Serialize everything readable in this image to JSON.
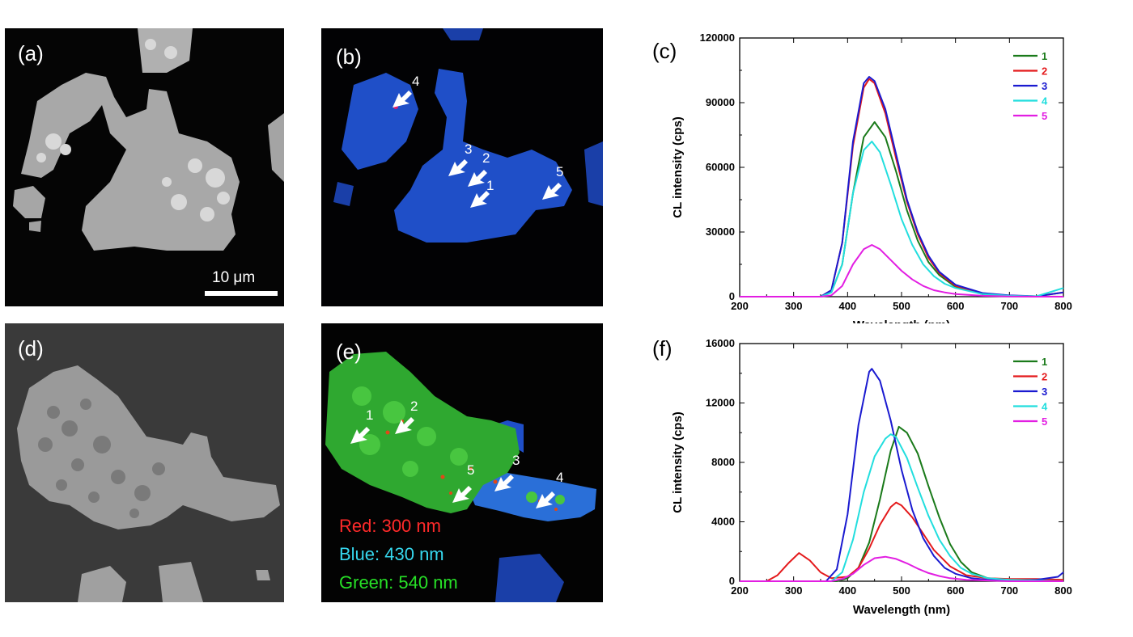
{
  "panels": {
    "a": {
      "label": "(a)",
      "scalebar": "10 μm"
    },
    "b": {
      "label": "(b)",
      "markers": [
        "1",
        "2",
        "3",
        "4",
        "5"
      ]
    },
    "c": {
      "label": "(c)"
    },
    "d": {
      "label": "(d)"
    },
    "e": {
      "label": "(e)",
      "markers": [
        "1",
        "2",
        "3",
        "4",
        "5"
      ],
      "legend": [
        "Red: 300 nm",
        "Blue: 430 nm",
        "Green: 540 nm"
      ]
    },
    "f": {
      "label": "(f)"
    }
  },
  "colors": {
    "s1": "#1a7a1a",
    "s2": "#e41a1c",
    "s3": "#1a1ad0",
    "s4": "#22dede",
    "s5": "#e21ee2"
  },
  "chart_data": [
    {
      "type": "line",
      "panel": "c",
      "xlabel": "Wavelength (nm)",
      "ylabel": "CL intensity (cps)",
      "xlim": [
        200,
        800
      ],
      "ylim": [
        0,
        120000
      ],
      "xticks": [
        200,
        300,
        400,
        500,
        600,
        700,
        800
      ],
      "yticks": [
        0,
        30000,
        60000,
        90000,
        120000
      ],
      "xtick_labels": [
        "200",
        "300",
        "400",
        "500",
        "600",
        "700",
        "800"
      ],
      "ytick_labels": [
        "0",
        "30000",
        "60000",
        "90000",
        "120000"
      ],
      "series": [
        {
          "name": "1",
          "color": "#1a7a1a",
          "x": [
            200,
            350,
            370,
            390,
            410,
            430,
            450,
            470,
            490,
            510,
            530,
            550,
            570,
            600,
            650,
            700,
            750,
            800
          ],
          "y": [
            0,
            0,
            2000,
            15000,
            48000,
            74000,
            81000,
            74000,
            58000,
            40000,
            26000,
            16000,
            10000,
            4500,
            1200,
            300,
            100,
            0
          ]
        },
        {
          "name": "2",
          "color": "#e41a1c",
          "x": [
            200,
            350,
            370,
            390,
            410,
            430,
            440,
            450,
            470,
            490,
            510,
            530,
            550,
            570,
            600,
            650,
            700,
            750,
            800
          ],
          "y": [
            0,
            0,
            3000,
            25000,
            70000,
            97000,
            101000,
            99000,
            85000,
            64000,
            44000,
            29000,
            18000,
            11000,
            5000,
            1500,
            500,
            200,
            2000
          ]
        },
        {
          "name": "3",
          "color": "#1a1ad0",
          "x": [
            200,
            350,
            370,
            390,
            410,
            430,
            440,
            450,
            470,
            490,
            510,
            530,
            550,
            570,
            600,
            650,
            700,
            750,
            800
          ],
          "y": [
            0,
            0,
            3000,
            25000,
            72000,
            99000,
            102000,
            100000,
            87000,
            66000,
            45000,
            30000,
            19000,
            11500,
            5500,
            1700,
            600,
            200,
            2000
          ]
        },
        {
          "name": "4",
          "color": "#22dede",
          "x": [
            200,
            350,
            370,
            390,
            410,
            430,
            445,
            460,
            480,
            500,
            520,
            540,
            560,
            580,
            600,
            650,
            700,
            750,
            800
          ],
          "y": [
            0,
            0,
            2000,
            15000,
            48000,
            68000,
            72000,
            67000,
            52000,
            36000,
            24000,
            15000,
            9500,
            6000,
            4000,
            1200,
            400,
            200,
            4000
          ]
        },
        {
          "name": "5",
          "color": "#e21ee2",
          "x": [
            200,
            350,
            370,
            390,
            410,
            430,
            445,
            460,
            480,
            500,
            520,
            540,
            560,
            580,
            600,
            650,
            700,
            750,
            800
          ],
          "y": [
            0,
            0,
            600,
            5000,
            15000,
            22000,
            24000,
            22000,
            17000,
            12000,
            8000,
            5000,
            3000,
            2000,
            1200,
            400,
            100,
            0,
            0
          ]
        }
      ]
    },
    {
      "type": "line",
      "panel": "f",
      "xlabel": "Wavelength (nm)",
      "ylabel": "CL intensity (cps)",
      "xlim": [
        200,
        800
      ],
      "ylim": [
        0,
        16000
      ],
      "xticks": [
        200,
        300,
        400,
        500,
        600,
        700,
        800
      ],
      "yticks": [
        0,
        4000,
        8000,
        12000,
        16000
      ],
      "xtick_labels": [
        "200",
        "300",
        "400",
        "500",
        "600",
        "700",
        "800"
      ],
      "ytick_labels": [
        "0",
        "4000",
        "8000",
        "12000",
        "16000"
      ],
      "series": [
        {
          "name": "1",
          "color": "#1a7a1a",
          "x": [
            200,
            380,
            400,
            420,
            440,
            460,
            480,
            495,
            510,
            530,
            550,
            570,
            590,
            610,
            630,
            660,
            700,
            750,
            800
          ],
          "y": [
            0,
            0,
            200,
            900,
            2600,
            5500,
            8800,
            10400,
            10000,
            8600,
            6400,
            4300,
            2500,
            1300,
            600,
            200,
            100,
            50,
            0
          ]
        },
        {
          "name": "2",
          "color": "#e41a1c",
          "x": [
            200,
            250,
            270,
            290,
            310,
            330,
            350,
            370,
            400,
            420,
            440,
            460,
            480,
            490,
            500,
            520,
            540,
            560,
            590,
            620,
            660,
            700,
            750,
            800
          ],
          "y": [
            0,
            0,
            400,
            1200,
            1900,
            1400,
            600,
            200,
            300,
            900,
            2200,
            3800,
            5000,
            5300,
            5100,
            4300,
            3200,
            2100,
            1000,
            400,
            200,
            150,
            150,
            100
          ]
        },
        {
          "name": "3",
          "color": "#1a1ad0",
          "x": [
            200,
            360,
            380,
            400,
            420,
            440,
            445,
            460,
            480,
            500,
            520,
            540,
            560,
            580,
            600,
            630,
            660,
            700,
            750,
            790,
            800
          ],
          "y": [
            0,
            0,
            800,
            4500,
            10500,
            14100,
            14300,
            13500,
            10800,
            7500,
            4800,
            2900,
            1700,
            900,
            500,
            200,
            100,
            50,
            100,
            300,
            600
          ]
        },
        {
          "name": "4",
          "color": "#22dede",
          "x": [
            200,
            370,
            390,
            410,
            430,
            450,
            470,
            480,
            490,
            510,
            530,
            550,
            570,
            590,
            610,
            630,
            660,
            700,
            750,
            800
          ],
          "y": [
            0,
            0,
            600,
            2800,
            6000,
            8400,
            9600,
            9900,
            9700,
            8300,
            6300,
            4400,
            2800,
            1700,
            900,
            500,
            200,
            100,
            50,
            0
          ]
        },
        {
          "name": "5",
          "color": "#e21ee2",
          "x": [
            200,
            370,
            390,
            410,
            430,
            450,
            470,
            490,
            510,
            530,
            550,
            570,
            590,
            620,
            660,
            700,
            800
          ],
          "y": [
            0,
            0,
            150,
            500,
            1100,
            1550,
            1650,
            1500,
            1200,
            850,
            550,
            350,
            200,
            100,
            50,
            0,
            0
          ]
        }
      ]
    }
  ]
}
